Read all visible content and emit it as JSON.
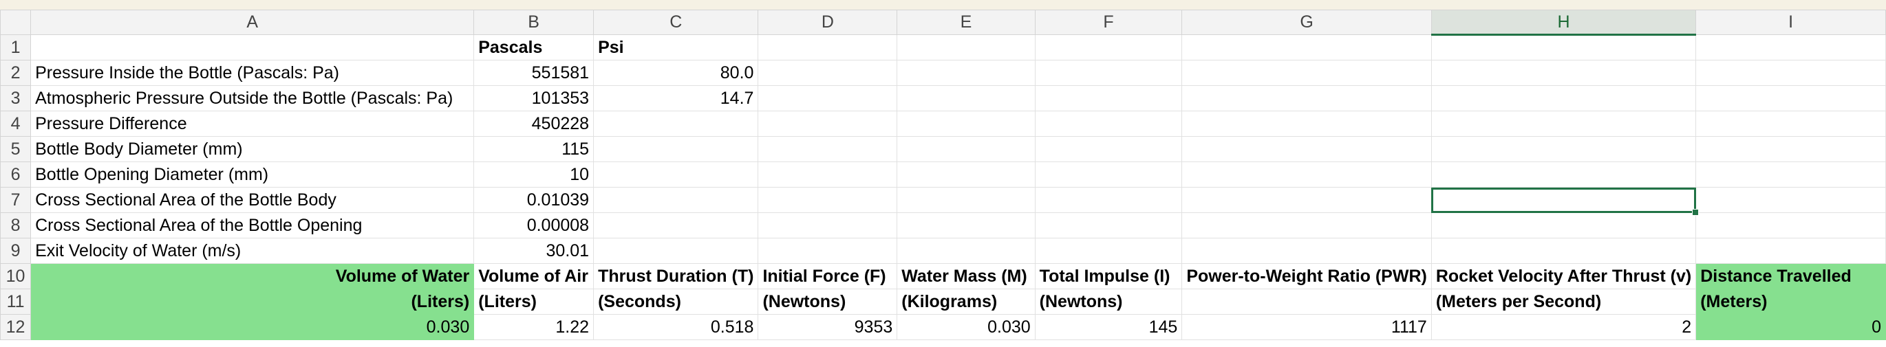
{
  "columns": [
    "A",
    "B",
    "C",
    "D",
    "E",
    "F",
    "G",
    "H",
    "I"
  ],
  "selected_column": "H",
  "rows": [
    {
      "num": "1",
      "cells": [
        "",
        "Pascals",
        "Psi",
        "",
        "",
        "",
        "",
        "",
        ""
      ]
    },
    {
      "num": "2",
      "cells": [
        "Pressure Inside the Bottle (Pascals: Pa)",
        "551581",
        "80.0",
        "",
        "",
        "",
        "",
        "",
        ""
      ]
    },
    {
      "num": "3",
      "cells": [
        "Atmospheric Pressure Outside the Bottle (Pascals: Pa)",
        "101353",
        "14.7",
        "",
        "",
        "",
        "",
        "",
        ""
      ]
    },
    {
      "num": "4",
      "cells": [
        "Pressure Difference",
        "450228",
        "",
        "",
        "",
        "",
        "",
        "",
        ""
      ]
    },
    {
      "num": "5",
      "cells": [
        "Bottle Body Diameter (mm)",
        "115",
        "",
        "",
        "",
        "",
        "",
        "",
        ""
      ]
    },
    {
      "num": "6",
      "cells": [
        "Bottle Opening Diameter (mm)",
        "10",
        "",
        "",
        "",
        "",
        "",
        "",
        ""
      ]
    },
    {
      "num": "7",
      "cells": [
        "Cross Sectional Area of the Bottle Body",
        "0.01039",
        "",
        "",
        "",
        "",
        "",
        "",
        ""
      ]
    },
    {
      "num": "8",
      "cells": [
        "Cross Sectional Area of the Bottle Opening",
        "0.00008",
        "",
        "",
        "",
        "",
        "",
        "",
        ""
      ]
    },
    {
      "num": "9",
      "cells": [
        "Exit Velocity of Water (m/s)",
        "30.01",
        "",
        "",
        "",
        "",
        "",
        "",
        ""
      ]
    },
    {
      "num": "10",
      "cells": [
        "Volume of Water",
        "Volume of Air",
        "Thrust Duration (T)",
        "Initial Force (F)",
        "Water Mass (M)",
        "Total Impulse (I)",
        "Power-to-Weight Ratio (PWR)",
        "Rocket Velocity After Thrust (v)",
        "Distance Travelled"
      ]
    },
    {
      "num": "11",
      "cells": [
        "(Liters)",
        "(Liters)",
        "(Seconds)",
        "(Newtons)",
        "(Kilograms)",
        "(Newtons)",
        "",
        "(Meters per Second)",
        "(Meters)"
      ]
    },
    {
      "num": "12",
      "cells": [
        "0.030",
        "1.22",
        "0.518",
        "9353",
        "0.030",
        "145",
        "1117",
        "2",
        "0"
      ]
    }
  ],
  "colors": {
    "header_fill": "#86e08f",
    "selection": "#217346"
  }
}
